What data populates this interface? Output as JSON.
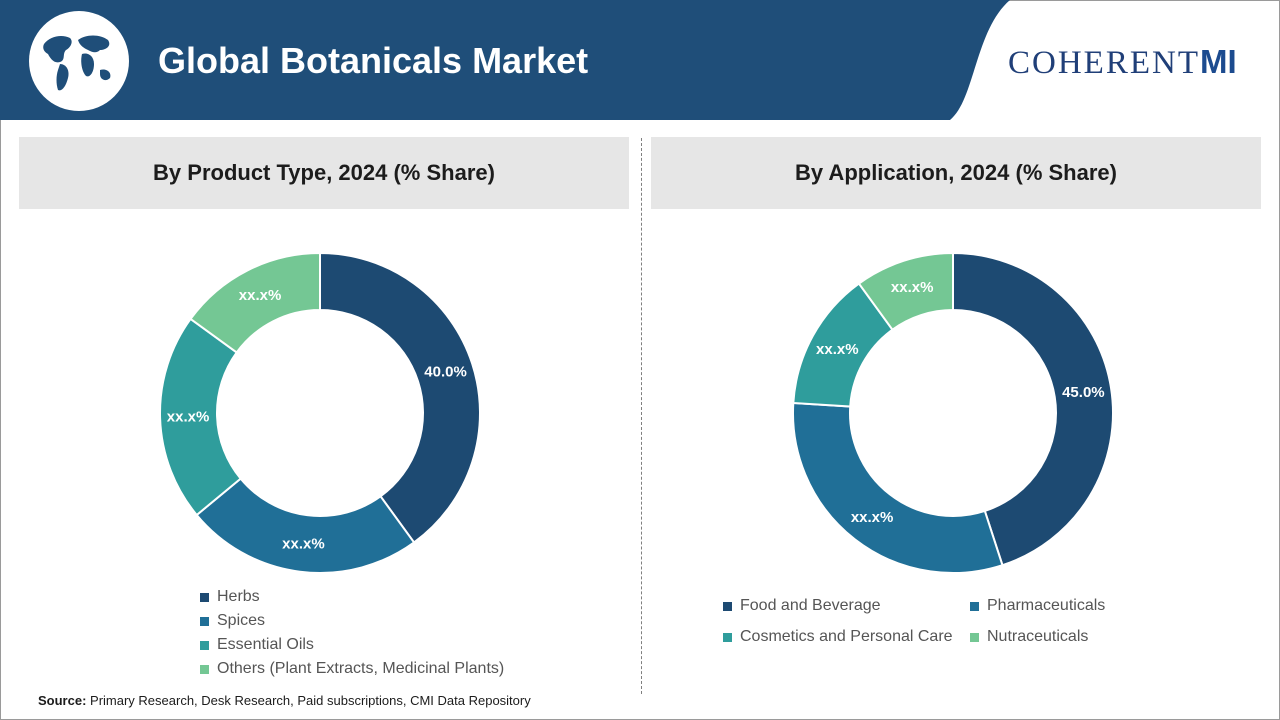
{
  "header": {
    "title": "Global Botanicals Market",
    "brand_main": "COHERENT",
    "brand_suffix": "MI",
    "icon": "world-map-globe-icon",
    "bar_color": "#1f4e79"
  },
  "panels": [
    {
      "heading": "By Product Type, 2024 (% Share)"
    },
    {
      "heading": "By Application, 2024 (% Share)"
    }
  ],
  "chart_data": [
    {
      "type": "pie",
      "variant": "donut",
      "title": "By Product Type, 2024 (% Share)",
      "slices": [
        {
          "name": "Herbs",
          "value": 40.0,
          "label": "40.0%",
          "color": "#1d4a72"
        },
        {
          "name": "Spices",
          "value": 24.0,
          "label": "xx.x%",
          "color": "#206f97"
        },
        {
          "name": "Essential Oils",
          "value": 21.0,
          "label": "xx.x%",
          "color": "#2f9d9c"
        },
        {
          "name": "Others (Plant Extracts, Medicinal Plants)",
          "value": 15.0,
          "label": "xx.x%",
          "color": "#74c794"
        }
      ],
      "legend": "bottom-left"
    },
    {
      "type": "pie",
      "variant": "donut",
      "title": "By Application, 2024 (% Share)",
      "slices": [
        {
          "name": "Food and Beverage",
          "value": 45.0,
          "label": "45.0%",
          "color": "#1d4a72"
        },
        {
          "name": "Pharmaceuticals",
          "value": 31.0,
          "label": "xx.x%",
          "color": "#206f97"
        },
        {
          "name": "Cosmetics and Personal Care",
          "value": 14.0,
          "label": "xx.x%",
          "color": "#2f9d9c"
        },
        {
          "name": "Nutraceuticals",
          "value": 10.0,
          "label": "xx.x%",
          "color": "#74c794"
        }
      ],
      "legend": "bottom"
    }
  ],
  "footer": {
    "source_label": "Source:",
    "source_text": " Primary Research, Desk Research, Paid subscriptions, CMI Data Repository"
  }
}
